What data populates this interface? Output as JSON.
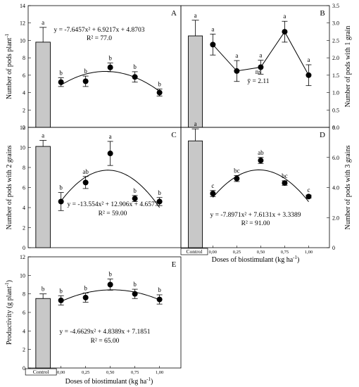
{
  "doses_axis": {
    "label": "Doses of biostimulant (kg ha",
    "label_sup": "-1",
    "label_end": ")",
    "ticks": [
      "0,00",
      "0,25",
      "0,50",
      "0,75",
      "1,00"
    ],
    "control_label": "Control"
  },
  "chart_data": [
    {
      "type": "bar+scatter",
      "panel": "A",
      "ylabel": "Number of pods plant",
      "ylabel_sup": "-1",
      "y_side": "left",
      "ylim": [
        0,
        14
      ],
      "yticks": [
        0,
        2,
        4,
        6,
        8,
        10,
        12,
        14
      ],
      "control": {
        "value": 9.8,
        "err": 1.7,
        "letter": "a"
      },
      "x": [
        0,
        0.25,
        0.5,
        0.75,
        1.0
      ],
      "values": [
        5.2,
        5.3,
        6.9,
        5.8,
        4.0
      ],
      "errors": [
        0.5,
        0.6,
        0.5,
        0.6,
        0.4
      ],
      "letters": [
        "b",
        "b",
        "b",
        "b",
        "b"
      ],
      "fit": {
        "a": -7.6457,
        "b": 6.9217,
        "c": 4.8703
      },
      "equation": "y = -7.6457x² + 6.9217x + 4.8703",
      "r2": "R² = 77.0"
    },
    {
      "type": "bar+scatter",
      "panel": "B",
      "ylabel": "Number of pods with 1 grain",
      "y_side": "right",
      "ylim": [
        0,
        3.5
      ],
      "yticks": [
        0,
        0.5,
        1.0,
        1.5,
        2.0,
        2.5,
        3.0,
        3.5
      ],
      "control": {
        "value": 2.63,
        "err": 0.45,
        "letter": "a"
      },
      "x": [
        0,
        0.25,
        0.5,
        0.75,
        1.0
      ],
      "values": [
        2.38,
        1.62,
        1.73,
        2.75,
        1.5
      ],
      "errors": [
        0.3,
        0.3,
        0.2,
        0.3,
        0.3
      ],
      "letters": [
        "a",
        "a",
        "a",
        "a",
        "a"
      ],
      "ns_label": "ns",
      "mean_label": "ȳ = 2.11"
    },
    {
      "type": "bar+scatter",
      "panel": "C",
      "ylabel": "Number of pods with 2 grains",
      "y_side": "left",
      "ylim": [
        0,
        12
      ],
      "yticks": [
        0,
        2,
        4,
        6,
        8,
        10,
        12
      ],
      "control": {
        "value": 10.1,
        "err": 0.6,
        "letter": "a"
      },
      "x": [
        0,
        0.25,
        0.5,
        0.75,
        1.0
      ],
      "values": [
        4.6,
        6.5,
        9.4,
        4.9,
        4.6
      ],
      "errors": [
        0.9,
        0.6,
        1.2,
        0.3,
        0.4
      ],
      "letters": [
        "b",
        "ab",
        "a",
        "b",
        "b"
      ],
      "fit": {
        "a": -13.554,
        "b": 12.906,
        "c": 4.6577
      },
      "equation": "y = -13.554x² + 12.906x + 4.6577",
      "r2": "R² = 59.00"
    },
    {
      "type": "bar+scatter",
      "panel": "D",
      "ylabel": "Number of pods with 3 grains",
      "y_side": "right",
      "ylim": [
        0,
        8
      ],
      "yticks": [
        0,
        2,
        4,
        6,
        8
      ],
      "control": {
        "value": 7.1,
        "err": 0.8,
        "letter": "a"
      },
      "x": [
        0,
        0.25,
        0.5,
        0.75,
        1.0
      ],
      "values": [
        3.6,
        4.6,
        5.8,
        4.3,
        3.4
      ],
      "errors": [
        0.2,
        0.2,
        0.2,
        0.15,
        0.1
      ],
      "letters": [
        "c",
        "bc",
        "ab",
        "bc",
        "c"
      ],
      "fit": {
        "a": -7.8971,
        "b": 7.6131,
        "c": 3.3389
      },
      "equation": "y = -7.8971x² + 7.6131x + 3.3389",
      "r2": "R² = 91.00"
    },
    {
      "type": "bar+scatter",
      "panel": "E",
      "ylabel": "Productivity (g plant",
      "ylabel_sup": "-1",
      "ylabel_end": ")",
      "y_side": "left",
      "ylim": [
        0,
        12
      ],
      "yticks": [
        0,
        2,
        4,
        6,
        8,
        10,
        12
      ],
      "control": {
        "value": 7.5,
        "err": 0.5,
        "letter": "b"
      },
      "x": [
        0,
        0.25,
        0.5,
        0.75,
        1.0
      ],
      "values": [
        7.3,
        7.6,
        9.0,
        8.0,
        7.4
      ],
      "errors": [
        0.5,
        0.5,
        0.6,
        0.5,
        0.5
      ],
      "letters": [
        "b",
        "b",
        "b",
        "b",
        "b"
      ],
      "fit": {
        "a": -4.6629,
        "b": 4.8389,
        "c": 7.1851
      },
      "equation": "y = -4.6629x² + 4.8389x + 7.1851",
      "r2": "R² = 65.00"
    }
  ]
}
